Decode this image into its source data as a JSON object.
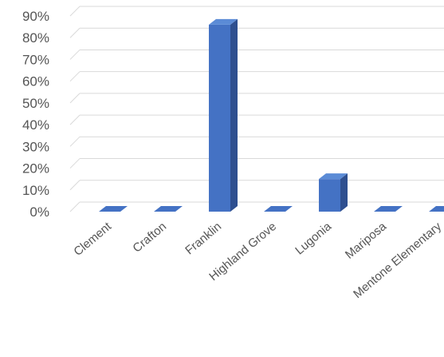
{
  "chart_data": {
    "type": "bar",
    "style": "3d-column",
    "categories": [
      "Clement",
      "Crafton",
      "Franklin",
      "Highland Grove",
      "Lugonia",
      "Mariposa",
      "Mentone Elementary"
    ],
    "values": [
      0,
      0,
      0.86,
      0,
      0.15,
      0,
      0
    ],
    "ylim": [
      0,
      0.9
    ],
    "y_ticks": [
      "0%",
      "10%",
      "20%",
      "30%",
      "40%",
      "50%",
      "60%",
      "70%",
      "80%",
      "90%"
    ],
    "grid": true,
    "legend": "none",
    "colors": {
      "bar_front": "#4472c4",
      "bar_top": "#5b8bd6",
      "bar_side": "#2e4f8f",
      "grid": "#d9d9d9",
      "text": "#555555"
    }
  }
}
